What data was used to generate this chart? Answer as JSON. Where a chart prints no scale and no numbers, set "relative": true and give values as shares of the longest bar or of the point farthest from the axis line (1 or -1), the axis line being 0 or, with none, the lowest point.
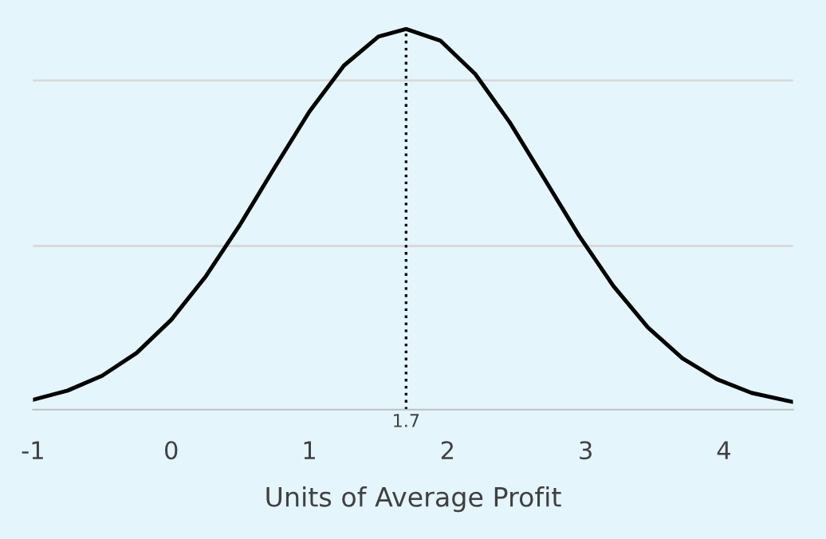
{
  "chart_data": {
    "type": "line",
    "relative": true,
    "xlabel": "Units of Average Profit",
    "x": [
      -1,
      -0.75,
      -0.5,
      -0.25,
      0,
      0.25,
      0.5,
      0.75,
      1,
      1.25,
      1.5,
      1.7,
      1.95,
      2.2,
      2.45,
      2.7,
      2.95,
      3.2,
      3.45,
      3.7,
      3.95,
      4.2,
      4.5
    ],
    "series": [
      {
        "color": "#000000",
        "values": [
          0.026,
          0.05,
          0.089,
          0.149,
          0.236,
          0.35,
          0.487,
          0.637,
          0.783,
          0.904,
          0.98,
          1,
          0.969,
          0.882,
          0.755,
          0.607,
          0.458,
          0.325,
          0.216,
          0.135,
          0.08,
          0.044,
          0.02
        ]
      }
    ],
    "xlim": [
      -1,
      4.5
    ],
    "xticks": [
      {
        "value": -1,
        "label": "-1"
      },
      0,
      1,
      2,
      3,
      4
    ],
    "ref_lines": [
      {
        "axis": "x",
        "value": 1.7,
        "label": "1.7",
        "color": "#000000",
        "line_style": "dotted"
      },
      {
        "axis": "y",
        "value": 0.43,
        "color": "#d9d9d9",
        "line_style": "solid"
      },
      {
        "axis": "y",
        "value": 0.865,
        "color": "#d9d9d9",
        "line_style": "solid"
      }
    ],
    "marker": "none",
    "line_style": "solid"
  }
}
